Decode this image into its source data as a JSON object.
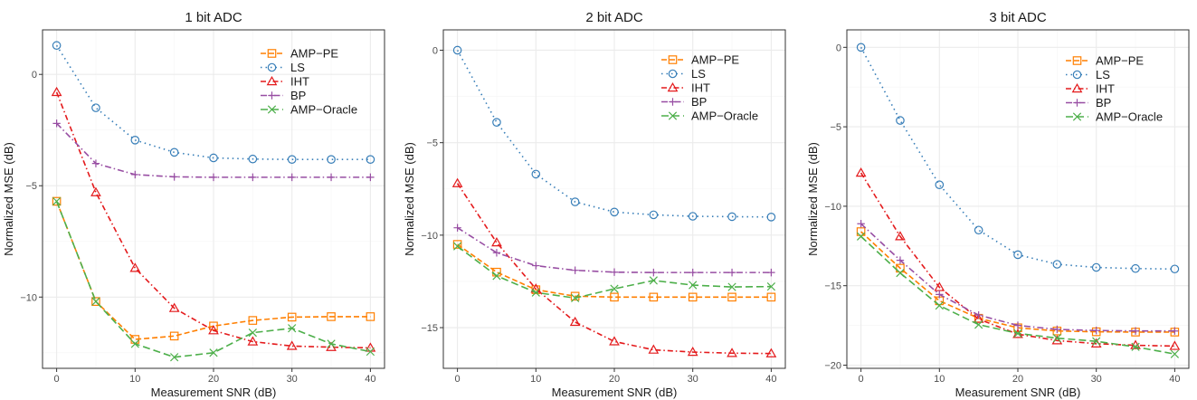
{
  "chart_data": [
    {
      "type": "line",
      "title": "1 bit ADC",
      "xlabel": "Measurement SNR (dB)",
      "ylabel": "Normalized MSE (dB)",
      "xlim": [
        -1.8,
        41.8
      ],
      "ylim": [
        -13.2,
        2
      ],
      "x_ticks": [
        0,
        10,
        20,
        30,
        40
      ],
      "y_ticks": [
        0,
        -5,
        -10
      ],
      "grid": true,
      "legend": "top-right",
      "x": [
        0,
        5,
        10,
        15,
        20,
        25,
        30,
        35,
        40
      ],
      "series": [
        {
          "name": "AMP−PE",
          "values": [
            -5.7,
            -10.2,
            -11.9,
            -11.75,
            -11.3,
            -11.05,
            -10.9,
            -10.88,
            -10.88
          ]
        },
        {
          "name": "LS",
          "values": [
            1.3,
            -1.5,
            -2.95,
            -3.5,
            -3.75,
            -3.8,
            -3.82,
            -3.82,
            -3.82
          ]
        },
        {
          "name": "IHT",
          "values": [
            -0.8,
            -5.3,
            -8.7,
            -10.5,
            -11.5,
            -12.0,
            -12.2,
            -12.25,
            -12.28
          ]
        },
        {
          "name": "BP",
          "values": [
            -2.2,
            -4.0,
            -4.5,
            -4.6,
            -4.62,
            -4.62,
            -4.62,
            -4.62,
            -4.62
          ]
        },
        {
          "name": "AMP−Oracle",
          "values": [
            -5.7,
            -10.2,
            -12.1,
            -12.7,
            -12.5,
            -11.6,
            -11.4,
            -12.1,
            -12.45
          ]
        }
      ]
    },
    {
      "type": "line",
      "title": "2 bit ADC",
      "xlabel": "Measurement SNR (dB)",
      "ylabel": "Normalized MSE (dB)",
      "xlim": [
        -1.8,
        41.8
      ],
      "ylim": [
        -17.2,
        1.1
      ],
      "x_ticks": [
        0,
        10,
        20,
        30,
        40
      ],
      "y_ticks": [
        0,
        -5,
        -10,
        -15
      ],
      "grid": true,
      "legend": "top-right",
      "x": [
        0,
        5,
        10,
        15,
        20,
        25,
        30,
        35,
        40
      ],
      "series": [
        {
          "name": "AMP−PE",
          "values": [
            -10.5,
            -12.0,
            -12.95,
            -13.3,
            -13.35,
            -13.35,
            -13.35,
            -13.35,
            -13.35
          ]
        },
        {
          "name": "LS",
          "values": [
            0.0,
            -3.9,
            -6.7,
            -8.2,
            -8.75,
            -8.9,
            -8.98,
            -9.0,
            -9.02
          ]
        },
        {
          "name": "IHT",
          "values": [
            -7.2,
            -10.4,
            -12.9,
            -14.7,
            -15.75,
            -16.2,
            -16.32,
            -16.38,
            -16.4
          ]
        },
        {
          "name": "BP",
          "values": [
            -9.6,
            -10.95,
            -11.65,
            -11.9,
            -12.0,
            -12.02,
            -12.02,
            -12.02,
            -12.02
          ]
        },
        {
          "name": "AMP−Oracle",
          "values": [
            -10.6,
            -12.2,
            -13.1,
            -13.4,
            -12.9,
            -12.45,
            -12.7,
            -12.8,
            -12.78
          ]
        }
      ]
    },
    {
      "type": "line",
      "title": "3 bit ADC",
      "xlabel": "Measurement SNR (dB)",
      "ylabel": "Normalized MSE (dB)",
      "xlim": [
        -1.8,
        41.8
      ],
      "ylim": [
        -20.2,
        1.1
      ],
      "x_ticks": [
        0,
        10,
        20,
        30,
        40
      ],
      "y_ticks": [
        0,
        -5,
        -10,
        -15,
        -20
      ],
      "grid": true,
      "legend": "top-right",
      "x": [
        0,
        5,
        10,
        15,
        20,
        25,
        30,
        35,
        40
      ],
      "series": [
        {
          "name": "AMP−PE",
          "values": [
            -11.6,
            -13.9,
            -15.95,
            -17.05,
            -17.65,
            -17.85,
            -17.9,
            -17.92,
            -17.92
          ]
        },
        {
          "name": "LS",
          "values": [
            0.0,
            -4.6,
            -8.65,
            -11.5,
            -13.05,
            -13.65,
            -13.85,
            -13.92,
            -13.95
          ]
        },
        {
          "name": "IHT",
          "values": [
            -7.9,
            -11.9,
            -15.1,
            -17.1,
            -18.05,
            -18.45,
            -18.65,
            -18.75,
            -18.8
          ]
        },
        {
          "name": "BP",
          "values": [
            -11.1,
            -13.4,
            -15.55,
            -16.85,
            -17.5,
            -17.75,
            -17.82,
            -17.85,
            -17.85
          ]
        },
        {
          "name": "AMP−Oracle",
          "values": [
            -11.9,
            -14.2,
            -16.25,
            -17.45,
            -18.0,
            -18.3,
            -18.5,
            -18.85,
            -19.3
          ]
        }
      ]
    }
  ],
  "series_styles": [
    {
      "color": "#ff7f00",
      "dash": "6,3",
      "marker": "square"
    },
    {
      "color": "#377eb8",
      "dash": "1.5,4",
      "marker": "circle"
    },
    {
      "color": "#e41a1c",
      "dash": "6,3,1.5,3",
      "marker": "triangle"
    },
    {
      "color": "#984ea3",
      "dash": "7,3,1.5,3",
      "marker": "plus"
    },
    {
      "color": "#4daf4a",
      "dash": "8,4",
      "marker": "cross"
    }
  ],
  "colors": {
    "panel_background": "#ffffff",
    "panel_border": "#333333",
    "grid_major": "#ebebeb",
    "grid_minor": "#f5f5f5"
  }
}
